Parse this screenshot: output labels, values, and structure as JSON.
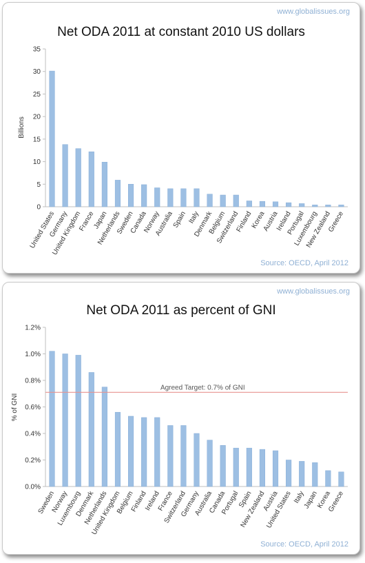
{
  "watermark": "www.globalissues.org",
  "colors": {
    "bar": "#9dbfe3",
    "bar_edge": "#87aed8",
    "target_line": "#e8928f",
    "axis": "#bfbfbf",
    "source_text": "#8fb0d4"
  },
  "chart_data": [
    {
      "type": "bar",
      "title": "Net ODA 2011 at constant 2010 US dollars",
      "ylabel": "Billions",
      "xlabel": "",
      "ylim": [
        0,
        35
      ],
      "yticks": [
        "0",
        "5",
        "10",
        "15",
        "20",
        "25",
        "30",
        "35"
      ],
      "grid": false,
      "source": "Source: OECD, April 2012",
      "categories": [
        "United States",
        "Germany",
        "United Kingdom",
        "France",
        "Japan",
        "Netherlands",
        "Sweden",
        "Canada",
        "Norway",
        "Australia",
        "Spain",
        "Italy",
        "Denmark",
        "Belgium",
        "Switzerland",
        "Finland",
        "Korea",
        "Austria",
        "Ireland",
        "Portugal",
        "Luxembourg",
        "New Zealand",
        "Greece"
      ],
      "values": [
        30.1,
        13.8,
        12.9,
        12.2,
        9.9,
        5.9,
        5.0,
        4.9,
        4.2,
        4.0,
        4.0,
        4.0,
        2.8,
        2.6,
        2.6,
        1.3,
        1.2,
        1.1,
        0.9,
        0.7,
        0.4,
        0.4,
        0.4
      ]
    },
    {
      "type": "bar",
      "title": "Net ODA 2011 as percent of GNI",
      "ylabel": "% of GNI",
      "xlabel": "",
      "ylim": [
        0,
        1.2
      ],
      "yticks": [
        "0.0%",
        "0.2%",
        "0.4%",
        "0.6%",
        "0.8%",
        "1.0%",
        "1.2%"
      ],
      "grid": false,
      "source": "Source: OECD, April 2012",
      "target": {
        "value": 0.71,
        "label": "Agreed Target: 0.7% of GNI"
      },
      "categories": [
        "Sweden",
        "Norway",
        "Luxembourg",
        "Denmark",
        "Netherlands",
        "United Kingdom",
        "Belgium",
        "Finland",
        "Ireland",
        "France",
        "Switzerland",
        "Germany",
        "Australia",
        "Canada",
        "Portugal",
        "Spain",
        "New Zealand",
        "Austria",
        "United States",
        "Italy",
        "Japan",
        "Korea",
        "Greece"
      ],
      "values": [
        1.02,
        1.0,
        0.99,
        0.86,
        0.75,
        0.56,
        0.53,
        0.52,
        0.52,
        0.46,
        0.46,
        0.4,
        0.35,
        0.31,
        0.29,
        0.29,
        0.28,
        0.27,
        0.2,
        0.19,
        0.18,
        0.12,
        0.11
      ]
    }
  ]
}
